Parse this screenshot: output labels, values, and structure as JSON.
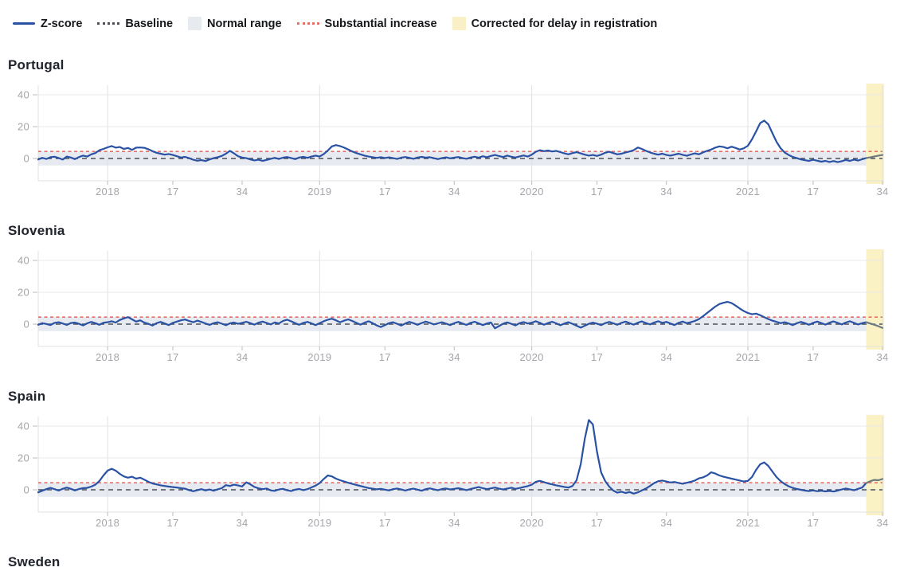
{
  "legend": {
    "items": [
      {
        "label": "Z-score",
        "swatch": "line",
        "color": "#2a52a4"
      },
      {
        "label": "Baseline",
        "swatch": "dotted-line",
        "color": "#4b5058"
      },
      {
        "label": "Normal range",
        "swatch": "box",
        "color": "#e7eaef"
      },
      {
        "label": "Substantial increase",
        "swatch": "dotted-line",
        "color": "#e2716b"
      },
      {
        "label": "Corrected for delay in registration",
        "swatch": "box",
        "color": "#faf0c8"
      }
    ]
  },
  "axis": {
    "ylim": [
      -14,
      46
    ],
    "y_ticks": [
      40,
      20,
      0
    ],
    "x_tick_labels": [
      "2018",
      "17",
      "34",
      "2019",
      "17",
      "34",
      "2020",
      "17",
      "34",
      "2021",
      "17",
      "34"
    ],
    "x_tick_indices": [
      17,
      33,
      50,
      69,
      85,
      102,
      121,
      137,
      154,
      174,
      190,
      207
    ],
    "year_gridline_indices": [
      17,
      69,
      121,
      174
    ],
    "x_start_week": "2017-W36",
    "x_end_week": "2021-W34",
    "weeks_total": 208,
    "grid": "horizontal lines at y ticks, vertical lines at year starts"
  },
  "style": {
    "zscore_color": "#2a52a4",
    "baseline_color": "#4b5058",
    "baseline_value": 0,
    "substantial_color": "#e2716b",
    "substantial_value": 4.4,
    "normal_range_color": "#e7ebf1",
    "normal_range": [
      -4.4,
      4.4
    ],
    "corrected_band_color": "#faf2c4",
    "corrected_line_color": "#6f7a7e",
    "corrected_weeks": 4,
    "grid_color": "#e9e9e9",
    "frame_color": "#e1e1e1",
    "tick_color": "#c6c6c6",
    "tick_label_color": "#a2a5aa",
    "title_color": "#20242c"
  },
  "chart_data": [
    {
      "type": "line",
      "title": "Portugal",
      "ylabel": "Z-score",
      "series": [
        {
          "name": "Z-score",
          "values": [
            -0.6,
            0.4,
            -0.3,
            0.8,
            1.1,
            0.3,
            -0.7,
            1.2,
            0.6,
            -0.4,
            0.9,
            1.8,
            1.2,
            2.6,
            3.4,
            5.2,
            6.0,
            7.0,
            7.8,
            6.8,
            7.2,
            6.0,
            6.6,
            5.4,
            6.8,
            6.9,
            6.7,
            5.8,
            4.6,
            3.6,
            3.0,
            2.4,
            2.8,
            2.2,
            1.4,
            0.6,
            1.0,
            0.2,
            -0.8,
            -1.4,
            -1.0,
            -1.6,
            -0.6,
            0.2,
            0.8,
            1.6,
            3.0,
            4.8,
            3.2,
            1.4,
            0.6,
            0.2,
            -0.6,
            -1.2,
            -0.8,
            -1.5,
            -0.9,
            -0.2,
            0.4,
            -0.3,
            0.5,
            0.9,
            0.3,
            -0.4,
            0.6,
            1.0,
            0.4,
            1.2,
            1.8,
            1.2,
            2.8,
            5.0,
            7.6,
            8.4,
            7.8,
            6.8,
            5.6,
            4.4,
            3.4,
            2.6,
            1.8,
            1.2,
            0.8,
            0.4,
            0.8,
            0.3,
            0.7,
            0.2,
            -0.3,
            0.5,
            0.9,
            0.4,
            -0.2,
            0.6,
            1.0,
            0.5,
            0.8,
            0.2,
            -0.4,
            0.3,
            0.7,
            0.1,
            0.5,
            0.9,
            0.3,
            -0.2,
            0.6,
            1.1,
            0.5,
            1.4,
            0.8,
            1.6,
            2.2,
            1.5,
            0.9,
            1.8,
            1.1,
            0.6,
            1.3,
            1.9,
            1.2,
            2.4,
            4.2,
            5.2,
            4.6,
            5.0,
            4.4,
            4.8,
            4.0,
            3.2,
            2.6,
            3.4,
            4.0,
            3.2,
            2.4,
            1.8,
            2.2,
            1.6,
            2.4,
            3.6,
            4.2,
            3.4,
            2.6,
            3.0,
            3.8,
            4.4,
            5.2,
            6.9,
            6.0,
            4.8,
            3.8,
            3.0,
            2.4,
            3.0,
            2.2,
            1.8,
            2.4,
            3.0,
            2.3,
            1.7,
            2.5,
            3.2,
            2.6,
            3.8,
            4.8,
            5.6,
            6.8,
            7.6,
            7.2,
            6.4,
            7.4,
            6.6,
            5.6,
            6.4,
            8.0,
            12.0,
            17.0,
            22.2,
            23.8,
            21.5,
            16.0,
            10.5,
            6.5,
            3.8,
            2.2,
            1.0,
            0.2,
            -0.6,
            -1.1,
            -1.5,
            -0.8,
            -1.4,
            -2.0,
            -1.5,
            -2.2,
            -1.6,
            -2.3,
            -1.7,
            -0.9,
            -1.5,
            -0.7,
            -1.3,
            -0.5,
            0.3,
            0.7,
            1.3,
            1.8,
            2.2
          ]
        }
      ]
    },
    {
      "type": "line",
      "title": "Slovenia",
      "ylabel": "Z-score",
      "series": [
        {
          "name": "Z-score",
          "values": [
            -0.4,
            0.6,
            0.1,
            -0.6,
            0.8,
            1.2,
            0.4,
            -0.5,
            0.7,
            1.0,
            0.2,
            -0.8,
            0.5,
            1.4,
            0.6,
            -0.4,
            0.9,
            1.2,
            1.8,
            1.0,
            2.6,
            3.6,
            4.4,
            3.0,
            1.6,
            2.4,
            1.0,
            0.2,
            -0.9,
            0.6,
            1.4,
            0.4,
            -0.6,
            0.8,
            1.6,
            2.4,
            2.9,
            2.0,
            1.2,
            2.2,
            1.4,
            0.4,
            -0.5,
            0.6,
            1.2,
            0.3,
            -0.7,
            0.5,
            1.0,
            0.2,
            0.8,
            1.5,
            0.6,
            -0.3,
            0.9,
            1.6,
            0.7,
            -0.2,
            1.1,
            0.4,
            2.0,
            2.8,
            1.8,
            0.6,
            -0.4,
            0.8,
            1.4,
            0.5,
            -0.6,
            0.6,
            1.8,
            2.8,
            3.4,
            2.4,
            1.2,
            2.2,
            3.0,
            2.0,
            0.8,
            -0.3,
            0.9,
            1.8,
            0.6,
            -0.8,
            -1.8,
            -0.6,
            0.6,
            1.2,
            0.2,
            -0.9,
            0.4,
            1.4,
            0.6,
            -0.4,
            0.7,
            1.6,
            0.8,
            -0.2,
            0.5,
            1.2,
            0.3,
            -0.6,
            0.6,
            1.4,
            0.4,
            -0.5,
            0.8,
            1.5,
            0.5,
            -0.6,
            0.4,
            1.0,
            -2.6,
            -1.2,
            0.3,
            1.1,
            0.2,
            -0.8,
            0.6,
            1.3,
            0.4,
            0.9,
            1.8,
            0.8,
            -0.4,
            0.7,
            1.5,
            0.5,
            -0.7,
            0.4,
            1.2,
            0.2,
            -1.0,
            -2.2,
            -1.0,
            0.2,
            1.0,
            0.3,
            -0.6,
            0.6,
            1.4,
            0.5,
            -0.4,
            0.8,
            1.6,
            0.6,
            -0.3,
            0.9,
            1.7,
            0.7,
            -0.2,
            1.0,
            1.8,
            0.8,
            1.4,
            0.4,
            -0.6,
            0.8,
            1.6,
            0.6,
            1.2,
            2.0,
            3.2,
            5.0,
            7.0,
            9.0,
            11.0,
            12.6,
            13.4,
            14.0,
            13.2,
            11.6,
            9.8,
            8.2,
            7.0,
            6.2,
            6.6,
            5.6,
            4.4,
            3.2,
            2.2,
            1.4,
            0.6,
            1.2,
            0.4,
            -0.6,
            0.6,
            1.4,
            0.6,
            -0.4,
            0.8,
            1.6,
            0.7,
            -0.3,
            0.9,
            1.7,
            0.8,
            -0.2,
            1.0,
            1.8,
            0.8,
            -0.2,
            0.6,
            1.2,
            0.4,
            -0.4,
            -1.3,
            -2.4
          ]
        }
      ]
    },
    {
      "type": "line",
      "title": "Spain",
      "ylabel": "Z-score",
      "series": [
        {
          "name": "Z-score",
          "values": [
            -1.6,
            -0.6,
            0.4,
            1.2,
            0.4,
            -0.5,
            0.6,
            1.4,
            0.6,
            -0.4,
            0.5,
            1.0,
            1.2,
            2.0,
            3.2,
            5.5,
            9.0,
            12.0,
            13.2,
            12.0,
            10.0,
            8.4,
            7.6,
            8.2,
            7.0,
            7.6,
            6.4,
            5.0,
            4.0,
            3.4,
            2.8,
            2.4,
            2.0,
            1.7,
            1.4,
            1.0,
            0.7,
            -0.2,
            -0.9,
            -0.3,
            0.4,
            -0.4,
            0.2,
            -0.6,
            0.3,
            1.0,
            2.9,
            2.4,
            3.2,
            2.7,
            2.1,
            4.7,
            3.4,
            1.8,
            0.9,
            0.4,
            0.8,
            -0.4,
            -0.7,
            0.2,
            0.6,
            -0.3,
            -0.8,
            0.1,
            0.5,
            -0.2,
            0.4,
            1.5,
            2.6,
            4.2,
            6.8,
            9.0,
            8.4,
            7.0,
            6.0,
            5.2,
            4.4,
            3.7,
            3.0,
            2.4,
            1.7,
            1.1,
            0.7,
            0.3,
            0.6,
            0.1,
            -0.4,
            0.4,
            0.8,
            0.2,
            -0.5,
            0.3,
            0.7,
            0.1,
            -0.6,
            0.4,
            0.9,
            0.3,
            -0.3,
            0.5,
            0.8,
            0.2,
            0.6,
            1.0,
            0.4,
            -0.2,
            0.5,
            1.1,
            1.7,
            1.0,
            0.4,
            0.9,
            1.4,
            0.7,
            0.2,
            0.8,
            1.3,
            0.6,
            1.1,
            1.7,
            2.3,
            3.2,
            5.0,
            5.6,
            4.8,
            4.0,
            3.4,
            2.8,
            2.3,
            1.8,
            1.4,
            2.4,
            6.0,
            16.0,
            32.0,
            43.8,
            41.0,
            24.0,
            11.0,
            5.5,
            2.0,
            -0.5,
            -1.8,
            -1.2,
            -2.0,
            -1.4,
            -2.4,
            -1.6,
            -0.4,
            0.8,
            2.4,
            4.2,
            5.4,
            5.8,
            5.2,
            4.6,
            4.9,
            4.3,
            3.8,
            4.4,
            5.0,
            5.8,
            7.2,
            7.8,
            9.0,
            11.0,
            10.2,
            9.0,
            8.2,
            7.6,
            7.0,
            6.4,
            5.8,
            5.2,
            5.6,
            8.0,
            12.5,
            16.0,
            17.2,
            15.0,
            11.5,
            8.0,
            5.5,
            3.6,
            2.2,
            1.2,
            0.5,
            0.0,
            -0.5,
            -0.8,
            -0.4,
            -0.9,
            -0.6,
            -1.0,
            -0.7,
            -1.1,
            -0.5,
            0.2,
            0.8,
            0.3,
            -0.3,
            0.6,
            1.4,
            4.2,
            5.4,
            6.2,
            6.0,
            6.8
          ]
        }
      ]
    },
    {
      "type": "line",
      "title": "Sweden",
      "ylabel": "Z-score",
      "series": []
    }
  ]
}
